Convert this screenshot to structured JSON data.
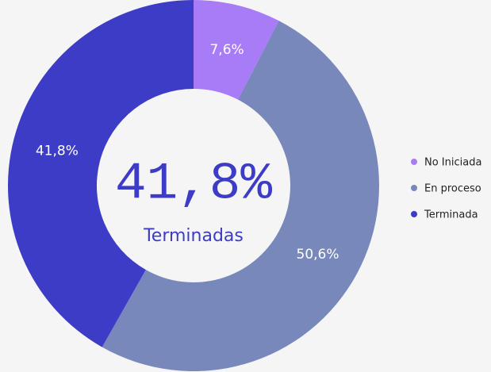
{
  "chart_data": {
    "type": "donut",
    "categories": [
      "No Iniciada",
      "En proceso",
      "Terminada"
    ],
    "values": [
      7.6,
      50.6,
      41.8
    ],
    "value_labels": [
      "7,6%",
      "50,6%",
      "41,8%"
    ],
    "colors": [
      "#a87bf7",
      "#7888bb",
      "#3d3cc6"
    ],
    "center_label": "41,8%",
    "center_caption": "Terminadas",
    "legend": "right"
  }
}
